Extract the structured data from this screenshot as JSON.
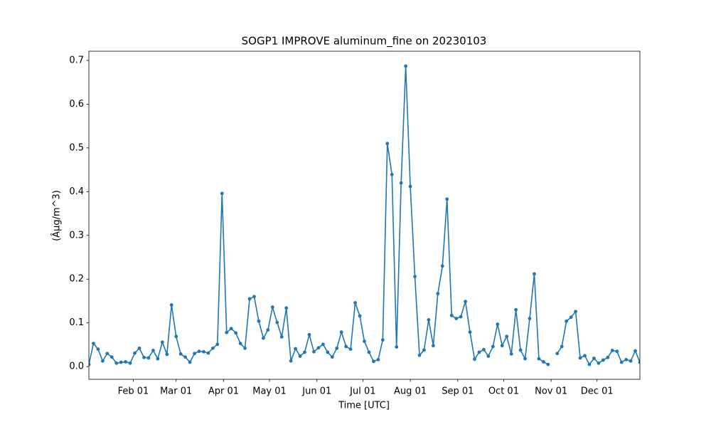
{
  "chart_data": {
    "type": "line",
    "title": "SOGP1 IMPROVE aluminum_fine on 20230103",
    "xlabel": "Time [UTC]",
    "ylabel": "(Âµg/m^3)",
    "color": "#1f77b4",
    "grid": false,
    "x": [
      "Jan 03",
      "Jan 06",
      "Jan 09",
      "Jan 12",
      "Jan 15",
      "Jan 18",
      "Jan 21",
      "Jan 24",
      "Jan 27",
      "Jan 30",
      "Feb 02",
      "Feb 05",
      "Feb 08",
      "Feb 11",
      "Feb 14",
      "Feb 17",
      "Feb 20",
      "Feb 23",
      "Feb 26",
      "Mar 01",
      "Mar 04",
      "Mar 07",
      "Mar 10",
      "Mar 13",
      "Mar 16",
      "Mar 19",
      "Mar 22",
      "Mar 25",
      "Mar 28",
      "Mar 31",
      "Apr 03",
      "Apr 06",
      "Apr 09",
      "Apr 12",
      "Apr 15",
      "Apr 18",
      "Apr 21",
      "Apr 24",
      "Apr 27",
      "Apr 30",
      "May 03",
      "May 06",
      "May 09",
      "May 12",
      "May 15",
      "May 18",
      "May 21",
      "May 24",
      "May 27",
      "May 30",
      "Jun 02",
      "Jun 05",
      "Jun 08",
      "Jun 11",
      "Jun 14",
      "Jun 17",
      "Jun 20",
      "Jun 23",
      "Jun 26",
      "Jun 29",
      "Jul 02",
      "Jul 05",
      "Jul 08",
      "Jul 11",
      "Jul 14",
      "Jul 17",
      "Jul 20",
      "Jul 23",
      "Jul 26",
      "Jul 29",
      "Aug 01",
      "Aug 04",
      "Aug 07",
      "Aug 10",
      "Aug 13",
      "Aug 16",
      "Aug 19",
      "Aug 22",
      "Aug 25",
      "Aug 28",
      "Aug 31",
      "Sep 03",
      "Sep 06",
      "Sep 09",
      "Sep 12",
      "Sep 15",
      "Sep 18",
      "Sep 21",
      "Sep 24",
      "Sep 27",
      "Sep 30",
      "Oct 03",
      "Oct 06",
      "Oct 09",
      "Oct 12",
      "Oct 15",
      "Oct 18",
      "Oct 21",
      "Oct 24",
      "Oct 27",
      "Oct 30",
      "Nov 02",
      "Nov 05",
      "Nov 08",
      "Nov 11",
      "Nov 14",
      "Nov 17",
      "Nov 20",
      "Nov 23",
      "Nov 26",
      "Nov 29",
      "Dec 02",
      "Dec 05",
      "Dec 08",
      "Dec 11",
      "Dec 14",
      "Dec 17",
      "Dec 20",
      "Dec 23",
      "Dec 26",
      "Dec 29"
    ],
    "values": [
      0.005,
      0.053,
      0.04,
      0.013,
      0.03,
      0.022,
      0.008,
      0.01,
      0.011,
      0.008,
      0.031,
      0.042,
      0.021,
      0.02,
      0.037,
      0.018,
      0.056,
      0.028,
      0.141,
      0.069,
      0.029,
      0.022,
      0.01,
      0.03,
      0.035,
      0.034,
      0.031,
      0.042,
      0.051,
      0.396,
      0.078,
      0.087,
      0.077,
      0.053,
      0.042,
      0.155,
      0.16,
      0.104,
      0.065,
      0.084,
      0.136,
      0.101,
      0.068,
      0.134,
      0.013,
      0.041,
      0.024,
      0.033,
      0.073,
      0.034,
      0.043,
      0.051,
      0.033,
      0.022,
      0.042,
      0.079,
      0.046,
      0.04,
      0.146,
      0.116,
      0.058,
      0.033,
      0.012,
      0.016,
      0.061,
      0.51,
      0.439,
      0.045,
      0.42,
      0.687,
      0.412,
      0.206,
      0.026,
      0.038,
      0.107,
      0.048,
      0.167,
      0.23,
      0.383,
      0.117,
      0.11,
      0.114,
      0.149,
      0.079,
      0.017,
      0.033,
      0.039,
      0.024,
      0.046,
      0.097,
      0.048,
      0.069,
      0.029,
      0.13,
      0.038,
      0.018,
      0.11,
      0.212,
      0.018,
      0.011,
      0.005,
      null,
      0.03,
      0.046,
      0.104,
      0.113,
      0.126,
      0.02,
      0.025,
      0.005,
      0.019,
      0.008,
      0.015,
      0.021,
      0.037,
      0.035,
      0.01,
      0.016,
      0.013,
      0.036,
      0.01
    ],
    "xlim": [
      "Jan 03",
      "Dec 29"
    ],
    "xticks": [
      "Feb 01",
      "Mar 01",
      "Apr 01",
      "May 01",
      "Jun 01",
      "Jul 01",
      "Aug 01",
      "Sep 01",
      "Oct 01",
      "Nov 01",
      "Dec 01"
    ],
    "ylim": [
      -0.029,
      0.721
    ],
    "yticks": [
      {
        "value": 0,
        "label": "0.0"
      },
      0.1,
      0.2,
      0.3,
      0.4,
      0.5,
      0.6,
      0.7
    ]
  }
}
